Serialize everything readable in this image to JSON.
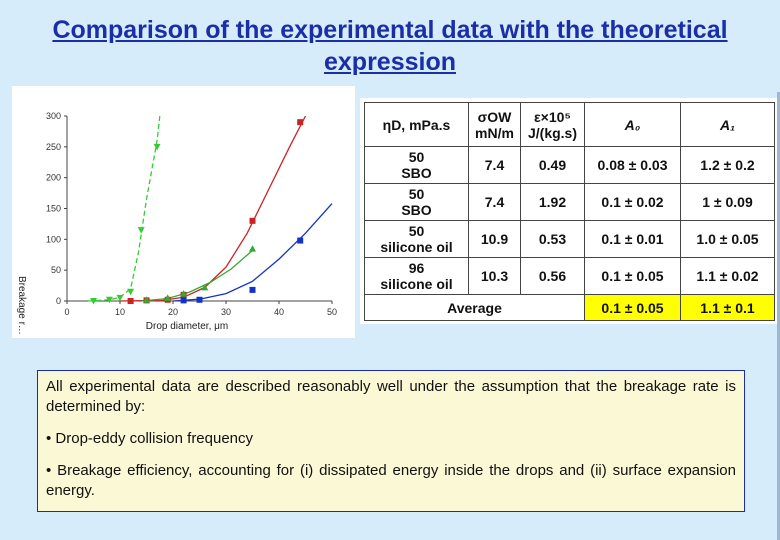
{
  "slide": {
    "title": "Comparison of the experimental data with the theoretical expression"
  },
  "chart_data": {
    "type": "scatter",
    "title": "",
    "xlabel": "Drop diameter, μm",
    "ylabel": "Breakage r…",
    "xlim": [
      0,
      50
    ],
    "ylim": [
      0,
      300
    ],
    "xticks": [
      0,
      10,
      20,
      30,
      40,
      50
    ],
    "yticks": [
      0,
      50,
      100,
      150,
      200,
      250,
      300
    ],
    "grid": false,
    "series": [
      {
        "color": "#33cc33",
        "marker": "triangle-down",
        "line": "dashed",
        "points": [
          [
            5,
            0
          ],
          [
            8,
            2
          ],
          [
            10,
            5
          ],
          [
            12,
            15
          ],
          [
            14,
            115
          ],
          [
            17,
            250
          ]
        ],
        "curve": [
          [
            4,
            0
          ],
          [
            8,
            2
          ],
          [
            10,
            6
          ],
          [
            12,
            20
          ],
          [
            13.5,
            80
          ],
          [
            15,
            165
          ],
          [
            17,
            260
          ],
          [
            17.5,
            300
          ]
        ]
      },
      {
        "color": "#cc2222",
        "marker": "square",
        "line": "solid",
        "points": [
          [
            12,
            0
          ],
          [
            15,
            1
          ],
          [
            19,
            2
          ],
          [
            22,
            10
          ],
          [
            35,
            130
          ],
          [
            44,
            290
          ]
        ],
        "curve": [
          [
            10,
            0
          ],
          [
            18,
            1
          ],
          [
            22,
            6
          ],
          [
            26,
            22
          ],
          [
            30,
            55
          ],
          [
            34,
            110
          ],
          [
            38,
            180
          ],
          [
            42,
            250
          ],
          [
            45,
            300
          ]
        ]
      },
      {
        "color": "#33aa33",
        "marker": "triangle-up",
        "line": "solid",
        "points": [
          [
            15,
            2
          ],
          [
            19,
            5
          ],
          [
            22,
            12
          ],
          [
            26,
            22
          ],
          [
            35,
            85
          ]
        ],
        "curve": [
          [
            14,
            0
          ],
          [
            19,
            4
          ],
          [
            23,
            14
          ],
          [
            27,
            30
          ],
          [
            31,
            52
          ],
          [
            35,
            82
          ]
        ]
      },
      {
        "color": "#1133cc",
        "marker": "square",
        "line": "solid",
        "points": [
          [
            22,
            1
          ],
          [
            25,
            2
          ],
          [
            35,
            18
          ],
          [
            44,
            98
          ]
        ],
        "curve": [
          [
            20,
            0
          ],
          [
            25,
            3
          ],
          [
            30,
            12
          ],
          [
            35,
            32
          ],
          [
            40,
            68
          ],
          [
            45,
            110
          ],
          [
            50,
            158
          ]
        ]
      }
    ]
  },
  "table": {
    "headers": {
      "viscosity": "ηD, mPa.s",
      "tension": "σOW\nmN/m",
      "epsilon": "ε×10⁵\nJ/(kg.s)",
      "a0": "A₀",
      "a1": "A₁"
    },
    "rows": [
      {
        "viscosity": "50\nSBO",
        "tension": "7.4",
        "epsilon": "0.49",
        "a0": "0.08 ± 0.03",
        "a1": "1.2 ± 0.2"
      },
      {
        "viscosity": "50\nSBO",
        "tension": "7.4",
        "epsilon": "1.92",
        "a0": "0.1 ± 0.02",
        "a1": "1 ± 0.09"
      },
      {
        "viscosity": "50\nsilicone oil",
        "tension": "10.9",
        "epsilon": "0.53",
        "a0": "0.1 ± 0.01",
        "a1": "1.0 ± 0.05"
      },
      {
        "viscosity": "96\nsilicone oil",
        "tension": "10.3",
        "epsilon": "0.56",
        "a0": "0.1 ± 0.05",
        "a1": "1.1 ± 0.02"
      }
    ],
    "average": {
      "label": "Average",
      "a0": "0.1 ± 0.05",
      "a1": "1.1 ± 0.1",
      "highlight_color": "#ffff00"
    }
  },
  "textbox": {
    "intro": "All experimental data are described reasonably well under the assumption that the breakage rate is determined by:",
    "bullet1": "• Drop-eddy collision frequency",
    "bullet2": "• Breakage efficiency, accounting for (i) dissipated energy inside the drops and (ii) surface expansion energy."
  }
}
